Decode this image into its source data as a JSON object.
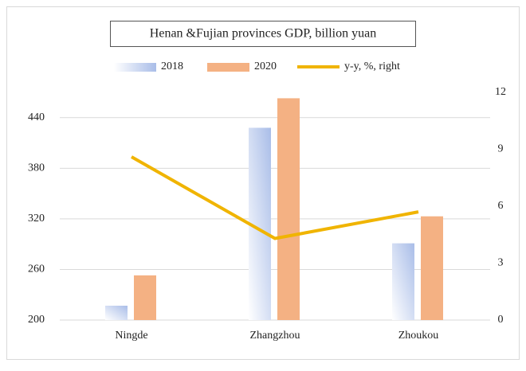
{
  "chart_data": {
    "type": "bar",
    "title": "Henan &Fujian provinces GDP, billion yuan",
    "categories": [
      "Ningde",
      "Zhangzhou",
      "Zhoukou"
    ],
    "series": [
      {
        "name": "2018",
        "color": "#a9bde8",
        "values": [
          217,
          428,
          291
        ]
      },
      {
        "name": "2020",
        "color": "#f4b183",
        "values": [
          253,
          463,
          323
        ]
      },
      {
        "name": "y-y, %, right",
        "type": "line",
        "axis": "y2",
        "color": "#f0b400",
        "values": [
          8.6,
          4.3,
          5.7
        ]
      }
    ],
    "ylim": [
      200,
      470
    ],
    "yticks": [
      200,
      260,
      320,
      380,
      440
    ],
    "y2lim": [
      0,
      12
    ],
    "y2ticks": [
      0,
      3,
      6,
      9,
      12
    ],
    "grid": true
  }
}
